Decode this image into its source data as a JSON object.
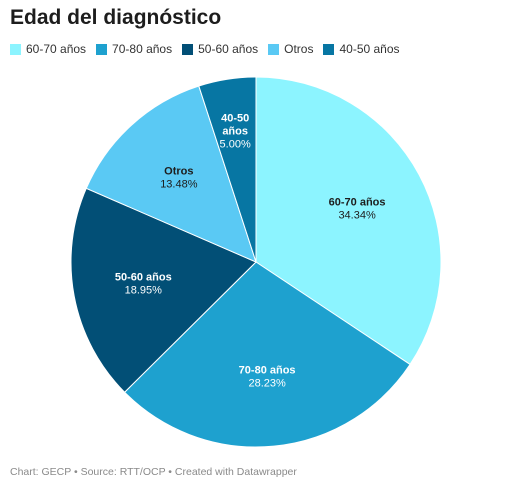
{
  "chart_data": {
    "type": "pie",
    "title": "Edad del diagnóstico",
    "legend_position": "top-left",
    "slices": [
      {
        "label": "60-70 años",
        "value": 34.34,
        "value_label": "34.34%",
        "color": "#8cf4ff",
        "text_color": "#1d1d1d"
      },
      {
        "label": "70-80 años",
        "value": 28.23,
        "value_label": "28.23%",
        "color": "#1ea1cf",
        "text_color": "#ffffff"
      },
      {
        "label": "50-60 años",
        "value": 18.95,
        "value_label": "18.95%",
        "color": "#024f76",
        "text_color": "#ffffff"
      },
      {
        "label": "Otros",
        "value": 13.48,
        "value_label": "13.48%",
        "color": "#5ac9f4",
        "text_color": "#1d1d1d"
      },
      {
        "label": "40-50 años",
        "value": 5.0,
        "value_label": "5.00%",
        "color": "#0776a3",
        "text_color": "#ffffff"
      }
    ]
  },
  "footer": "Chart: GECP • Source: RTT/OCP • Created with Datawrapper"
}
